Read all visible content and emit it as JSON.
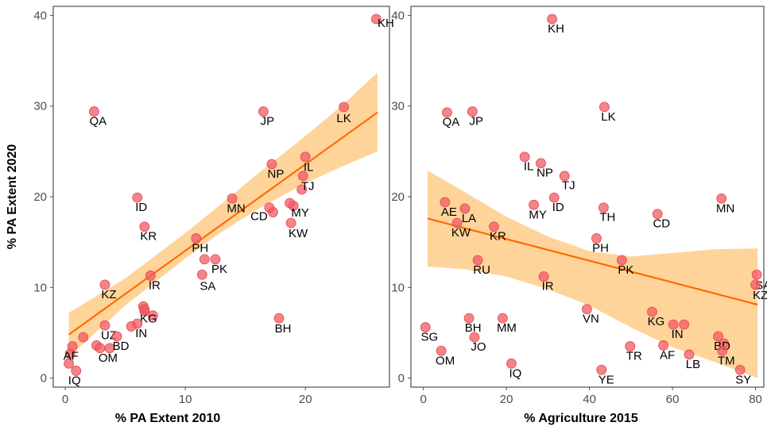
{
  "colors": {
    "point": "#f05a63",
    "point_edge": "#e8434d",
    "trend_line": "#ff6a00",
    "ribbon": "#ffcf8f",
    "frame": "#4d4d4d",
    "tick_text": "#4d4d4d"
  },
  "chart_data": [
    {
      "type": "scatter",
      "title": "",
      "xlabel": "% PA Extent 2010",
      "ylabel": "% PA Extent 2020",
      "xlim": [
        -1,
        27
      ],
      "ylim": [
        -1,
        41
      ],
      "xticks": [
        0,
        10,
        20
      ],
      "yticks": [
        0,
        10,
        20,
        30,
        40
      ],
      "trend": {
        "x0": 0.3,
        "y0": 4.8,
        "x1": 26,
        "y1": 29.3
      },
      "ribbon": {
        "x": [
          0.3,
          5,
          10,
          13,
          16,
          20,
          23,
          26
        ],
        "lower": [
          2.3,
          8.0,
          13.2,
          16.1,
          18.6,
          21.5,
          23.3,
          25.0
        ],
        "upper": [
          7.2,
          11.0,
          16.0,
          19.2,
          22.5,
          26.7,
          30.0,
          33.7
        ]
      },
      "points": [
        {
          "label": "KH",
          "x": 25.9,
          "y": 39.6
        },
        {
          "label": "QA",
          "x": 2.4,
          "y": 29.4
        },
        {
          "label": "JP",
          "x": 16.5,
          "y": 29.4
        },
        {
          "label": "LK",
          "x": 23.2,
          "y": 29.9
        },
        {
          "label": "IL",
          "x": 20.0,
          "y": 24.4
        },
        {
          "label": "NP",
          "x": 17.2,
          "y": 23.6
        },
        {
          "label": "TJ",
          "x": 19.8,
          "y": 22.3
        },
        {
          "label": "ID",
          "x": 6.0,
          "y": 19.9
        },
        {
          "label": "MN",
          "x": 13.9,
          "y": 19.8
        },
        {
          "label": "MY",
          "x": 18.7,
          "y": 19.3
        },
        {
          "label": "CD",
          "x": 17.0,
          "y": 18.8
        },
        {
          "label": "KW",
          "x": 18.8,
          "y": 17.1
        },
        {
          "label": "KR",
          "x": 6.6,
          "y": 16.7
        },
        {
          "label": "PH",
          "x": 10.9,
          "y": 15.4
        },
        {
          "label": "PK",
          "x": 12.5,
          "y": 13.1
        },
        {
          "label": "SA",
          "x": 11.4,
          "y": 11.4
        },
        {
          "label": "IR",
          "x": 7.1,
          "y": 11.3
        },
        {
          "label": "KZ",
          "x": 3.3,
          "y": 10.3
        },
        {
          "label": "KG",
          "x": 6.6,
          "y": 7.6
        },
        {
          "label": "BH",
          "x": 17.8,
          "y": 6.6
        },
        {
          "label": "IN",
          "x": 6.0,
          "y": 6.0
        },
        {
          "label": "UZ",
          "x": 3.3,
          "y": 5.8
        },
        {
          "label": "BD",
          "x": 4.3,
          "y": 4.6
        },
        {
          "label": "AF",
          "x": 0.6,
          "y": 3.5
        },
        {
          "label": "OM",
          "x": 2.9,
          "y": 3.3
        },
        {
          "label": "IQ",
          "x": 0.9,
          "y": 0.8
        }
      ],
      "extra_points": [
        {
          "x": 5.5,
          "y": 5.7
        },
        {
          "x": 7.3,
          "y": 6.9
        },
        {
          "x": 6.6,
          "y": 7.4
        },
        {
          "x": 1.5,
          "y": 4.5
        },
        {
          "x": 2.6,
          "y": 3.6
        },
        {
          "x": 3.7,
          "y": 3.3
        },
        {
          "x": 0.4,
          "y": 2.7
        },
        {
          "x": 0.3,
          "y": 1.6
        },
        {
          "x": 11.6,
          "y": 13.1
        },
        {
          "x": 19.0,
          "y": 19.0
        },
        {
          "x": 19.7,
          "y": 20.8
        },
        {
          "x": 17.3,
          "y": 18.3
        },
        {
          "x": 6.5,
          "y": 7.9
        }
      ]
    },
    {
      "type": "scatter",
      "title": "",
      "xlabel": "% Agriculture 2015",
      "ylabel": "",
      "xlim": [
        -3,
        82
      ],
      "ylim": [
        -1,
        41
      ],
      "xticks": [
        0,
        20,
        40,
        60,
        80
      ],
      "yticks": [
        0,
        10,
        20,
        30,
        40
      ],
      "trend": {
        "x0": 1,
        "y0": 17.6,
        "x1": 80.5,
        "y1": 8.1
      },
      "ribbon": {
        "x": [
          1,
          10,
          20,
          30,
          40,
          50,
          60,
          70,
          80.5
        ],
        "lower": [
          12.3,
          12.0,
          11.2,
          9.8,
          8.0,
          5.6,
          3.4,
          1.8,
          0.0
        ],
        "upper": [
          22.9,
          20.5,
          17.8,
          15.6,
          14.0,
          13.4,
          13.8,
          14.2,
          14.3
        ]
      },
      "points": [
        {
          "label": "KH",
          "x": 31.0,
          "y": 39.6
        },
        {
          "label": "QA",
          "x": 5.7,
          "y": 29.3
        },
        {
          "label": "JP",
          "x": 11.8,
          "y": 29.4
        },
        {
          "label": "LK",
          "x": 43.6,
          "y": 29.9
        },
        {
          "label": "IL",
          "x": 24.4,
          "y": 24.4
        },
        {
          "label": "NP",
          "x": 28.3,
          "y": 23.7
        },
        {
          "label": "TJ",
          "x": 34.0,
          "y": 22.3
        },
        {
          "label": "AE",
          "x": 5.2,
          "y": 19.4
        },
        {
          "label": "LA",
          "x": 10.0,
          "y": 18.7
        },
        {
          "label": "MY",
          "x": 26.6,
          "y": 19.1
        },
        {
          "label": "ID",
          "x": 31.5,
          "y": 19.9
        },
        {
          "label": "TH",
          "x": 43.4,
          "y": 18.8
        },
        {
          "label": "CD",
          "x": 56.4,
          "y": 18.1
        },
        {
          "label": "MN",
          "x": 71.8,
          "y": 19.8
        },
        {
          "label": "KW",
          "x": 8.1,
          "y": 17.1
        },
        {
          "label": "KR",
          "x": 17.0,
          "y": 16.7
        },
        {
          "label": "PH",
          "x": 41.7,
          "y": 15.4
        },
        {
          "label": "PK",
          "x": 47.8,
          "y": 13.0
        },
        {
          "label": "RU",
          "x": 13.1,
          "y": 13.0
        },
        {
          "label": "IR",
          "x": 29.0,
          "y": 11.2
        },
        {
          "label": "SA",
          "x": 80.3,
          "y": 11.4
        },
        {
          "label": "KZ",
          "x": 80.0,
          "y": 10.3
        },
        {
          "label": "VN",
          "x": 39.4,
          "y": 7.6
        },
        {
          "label": "KG",
          "x": 55.1,
          "y": 7.3
        },
        {
          "label": "SG",
          "x": 0.5,
          "y": 5.6
        },
        {
          "label": "BH",
          "x": 11.0,
          "y": 6.6
        },
        {
          "label": "MM",
          "x": 19.1,
          "y": 6.6
        },
        {
          "label": "IN",
          "x": 60.2,
          "y": 5.9
        },
        {
          "label": "JO",
          "x": 12.3,
          "y": 4.5
        },
        {
          "label": "BD",
          "x": 71.0,
          "y": 4.6
        },
        {
          "label": "OM",
          "x": 4.3,
          "y": 3.0
        },
        {
          "label": "TR",
          "x": 49.8,
          "y": 3.5
        },
        {
          "label": "AF",
          "x": 57.8,
          "y": 3.6
        },
        {
          "label": "LB",
          "x": 64.0,
          "y": 2.6
        },
        {
          "label": "TM",
          "x": 72.0,
          "y": 3.0
        },
        {
          "label": "IQ",
          "x": 21.2,
          "y": 1.6
        },
        {
          "label": "YE",
          "x": 42.9,
          "y": 0.9
        },
        {
          "label": "SY",
          "x": 76.3,
          "y": 0.9
        }
      ],
      "extra_points": [
        {
          "x": 62.8,
          "y": 5.9
        },
        {
          "x": 72.4,
          "y": 3.8
        }
      ]
    }
  ]
}
